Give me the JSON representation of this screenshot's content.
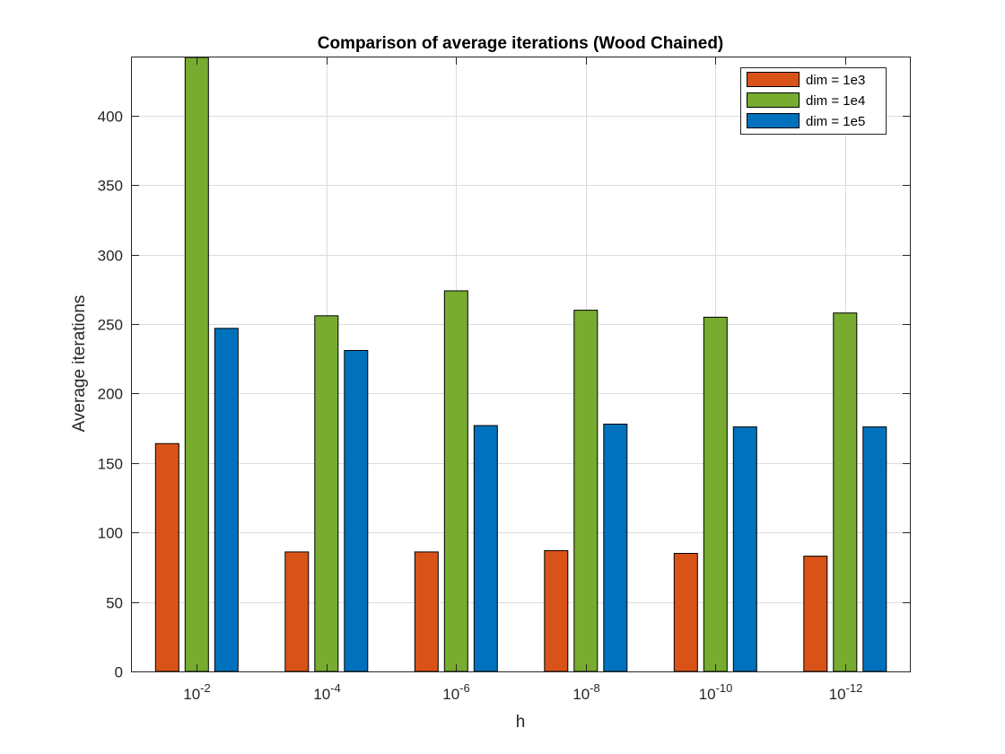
{
  "chart_data": {
    "type": "bar",
    "title": "Comparison of average iterations (Wood Chained)",
    "xlabel": "h",
    "ylabel": "Average iterations",
    "categories": [
      {
        "base": "10",
        "exp": "-2"
      },
      {
        "base": "10",
        "exp": "-4"
      },
      {
        "base": "10",
        "exp": "-6"
      },
      {
        "base": "10",
        "exp": "-8"
      },
      {
        "base": "10",
        "exp": "-10"
      },
      {
        "base": "10",
        "exp": "-12"
      }
    ],
    "series": [
      {
        "name": "dim = 1e3",
        "color": "#D95319",
        "values": [
          164,
          86,
          86,
          87,
          85,
          83
        ]
      },
      {
        "name": "dim = 1e4",
        "color": "#77AC30",
        "values": [
          445,
          256,
          274,
          260,
          255,
          258
        ]
      },
      {
        "name": "dim = 1e5",
        "color": "#0072BD",
        "values": [
          247,
          231,
          177,
          178,
          176,
          176
        ]
      }
    ],
    "ylim": [
      0,
      442
    ],
    "yticks": [
      0,
      50,
      100,
      150,
      200,
      250,
      300,
      350,
      400
    ],
    "grid": true,
    "legend_position": "top-right"
  }
}
